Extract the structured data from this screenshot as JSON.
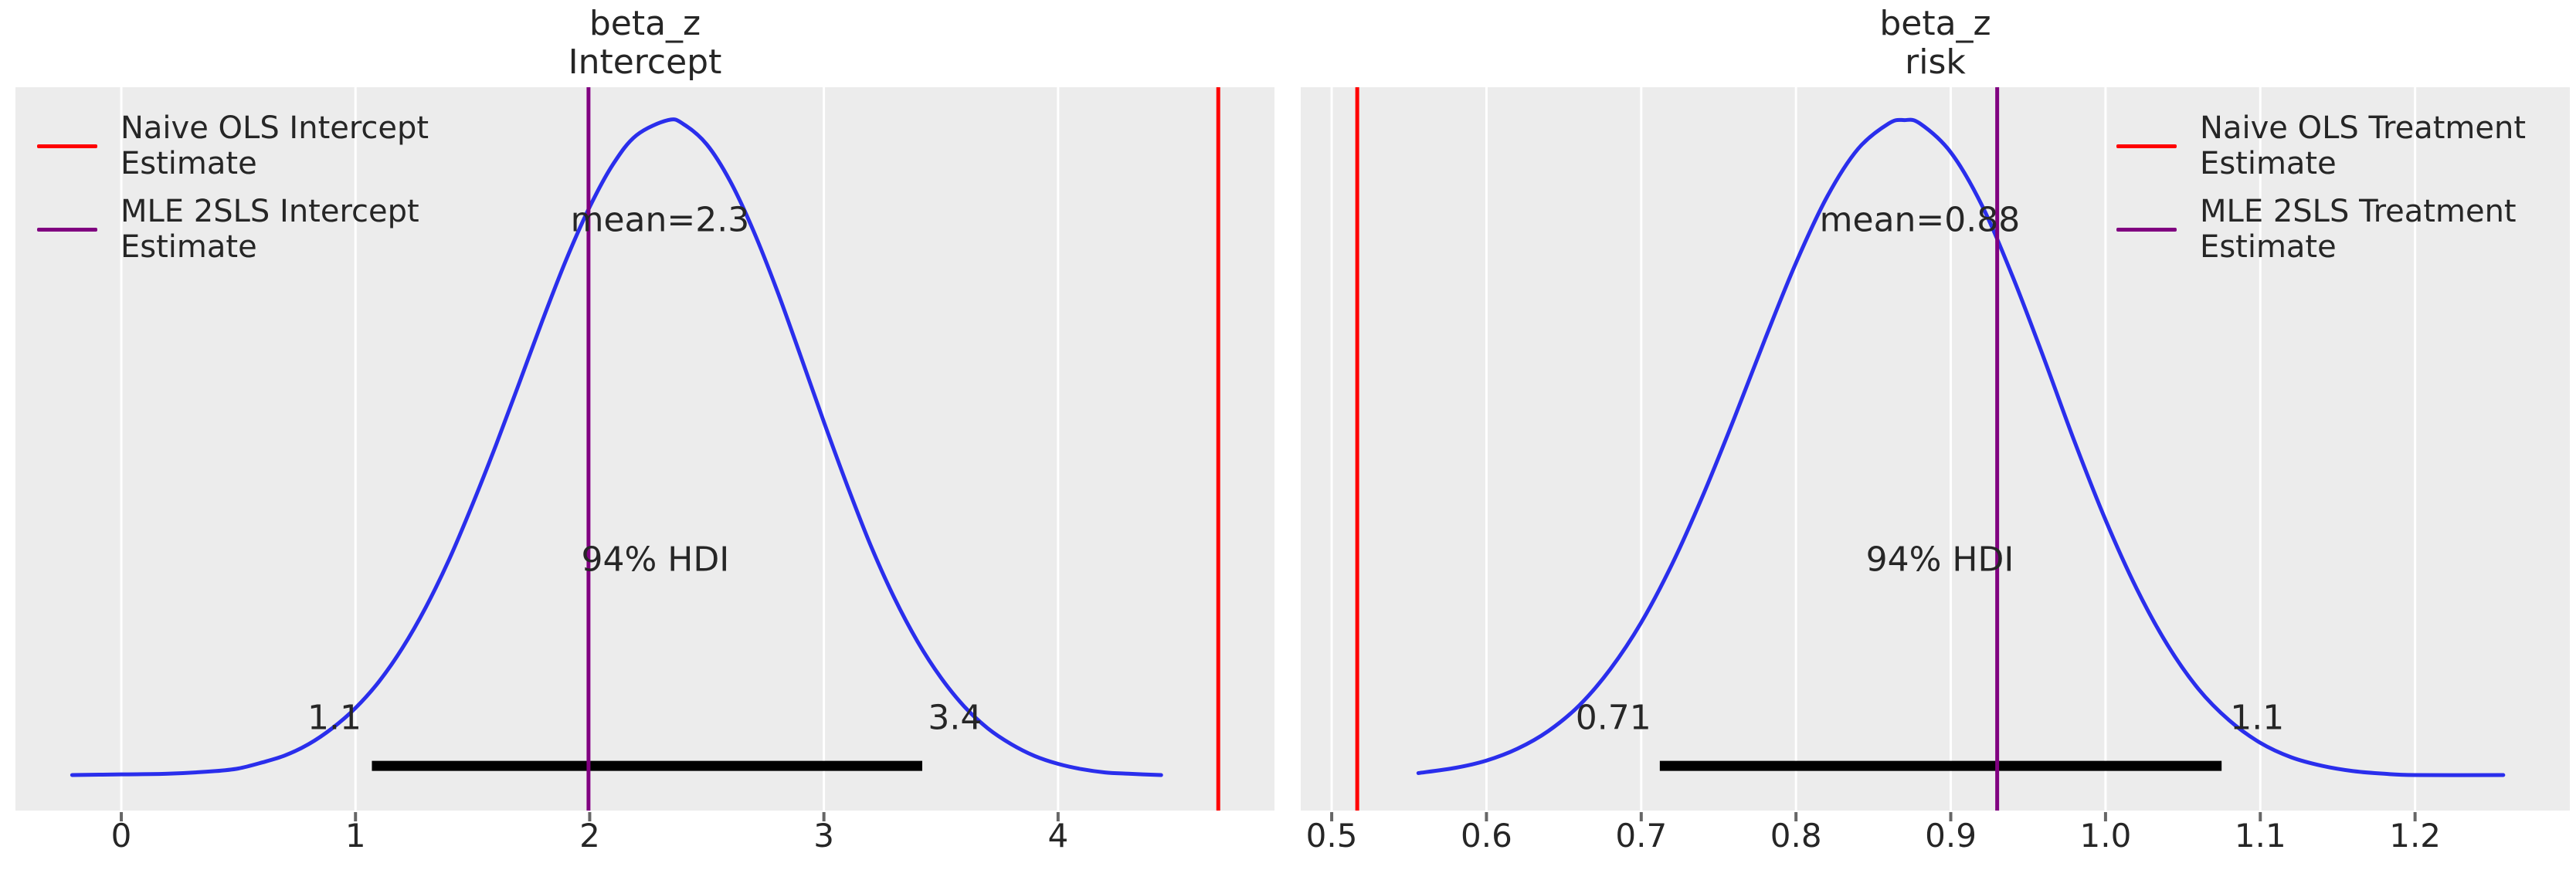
{
  "figure": {
    "background": "#ffffff",
    "plot_background": "#ececec",
    "grid_color": "#ffffff",
    "text_color": "#262626",
    "tick_color": "#666666",
    "hdi_bar_color": "#000000"
  },
  "chart_data": [
    {
      "type": "line",
      "title": "beta_z\nIntercept",
      "curve_name": "posterior-kde",
      "curve_color": "#2a2eec",
      "xlim": [
        -0.452,
        4.924
      ],
      "ylim": [
        -0.05,
        1.05
      ],
      "grid": "vertical-white",
      "xticks": [
        0,
        1,
        2,
        3,
        4
      ],
      "xtick_labels": [
        "0",
        "1",
        "2",
        "3",
        "4"
      ],
      "kde": {
        "x": [
          -0.21,
          0,
          0.2,
          0.4,
          0.5,
          0.6,
          0.7,
          0.8,
          0.9,
          1.0,
          1.1,
          1.2,
          1.3,
          1.4,
          1.5,
          1.6,
          1.7,
          1.8,
          1.9,
          2.0,
          2.1,
          2.2,
          2.335,
          2.4,
          2.5,
          2.6,
          2.7,
          2.8,
          2.9,
          3.0,
          3.1,
          3.2,
          3.3,
          3.4,
          3.5,
          3.6,
          3.7,
          3.8,
          3.9,
          4.0,
          4.1,
          4.2,
          4.3,
          4.44
        ],
        "density": [
          0.004,
          0.005,
          0.006,
          0.01,
          0.014,
          0.023,
          0.034,
          0.051,
          0.075,
          0.106,
          0.146,
          0.197,
          0.259,
          0.332,
          0.416,
          0.506,
          0.601,
          0.697,
          0.788,
          0.868,
          0.933,
          0.977,
          1.0,
          0.994,
          0.963,
          0.907,
          0.831,
          0.741,
          0.642,
          0.541,
          0.444,
          0.353,
          0.274,
          0.207,
          0.152,
          0.108,
          0.075,
          0.051,
          0.033,
          0.021,
          0.013,
          0.008,
          0.006,
          0.004
        ]
      },
      "mean_value": 2.3,
      "hdi_probability": "94%",
      "hdi_interval": [
        1.1,
        3.4
      ],
      "hdi_bar": {
        "from": 1.07,
        "to": 3.42,
        "y": 0.018
      },
      "annotations": {
        "mean": {
          "text": "mean=2.3",
          "x": 2.3,
          "y": 0.848
        },
        "hdi_text": {
          "text": "94% HDI",
          "x": 2.28,
          "y": 0.332
        },
        "hdi_lo": {
          "text": "1.1",
          "x": 0.91,
          "y": 0.091
        },
        "hdi_hi": {
          "text": "3.4",
          "x": 3.56,
          "y": 0.091
        }
      },
      "ref_lines": [
        {
          "name": "naive-ols-intercept-line",
          "x": 4.684,
          "color": "#ff0000"
        },
        {
          "name": "mle-2sls-intercept-line",
          "x": 1.995,
          "color": "#800080"
        }
      ],
      "legend": {
        "position": "upper-left",
        "items": [
          {
            "label": "Naive OLS Intercept\n Estimate",
            "color": "#ff0000"
          },
          {
            "label": "MLE 2SLS Intercept\n Estimate",
            "color": "#800080"
          }
        ]
      }
    },
    {
      "type": "line",
      "title": "beta_z\nrisk",
      "curve_name": "posterior-kde",
      "curve_color": "#2a2eec",
      "xlim": [
        0.48,
        1.3
      ],
      "ylim": [
        -0.05,
        1.05
      ],
      "grid": "vertical-white",
      "xticks": [
        0.5,
        0.6,
        0.7,
        0.8,
        0.9,
        1.0,
        1.1,
        1.2
      ],
      "xtick_labels": [
        "0.5",
        "0.6",
        "0.7",
        "0.8",
        "0.9",
        "1.0",
        "1.1",
        "1.2"
      ],
      "kde": {
        "x": [
          0.556,
          0.58,
          0.6,
          0.62,
          0.64,
          0.66,
          0.68,
          0.7,
          0.72,
          0.74,
          0.76,
          0.78,
          0.8,
          0.82,
          0.84,
          0.86,
          0.87,
          0.88,
          0.9,
          0.92,
          0.94,
          0.96,
          0.98,
          1.0,
          1.02,
          1.04,
          1.06,
          1.08,
          1.1,
          1.12,
          1.14,
          1.16,
          1.18,
          1.2,
          1.257
        ],
        "density": [
          0.007,
          0.015,
          0.026,
          0.044,
          0.071,
          0.11,
          0.165,
          0.236,
          0.325,
          0.43,
          0.546,
          0.667,
          0.783,
          0.883,
          0.956,
          0.995,
          1.0,
          0.995,
          0.951,
          0.871,
          0.762,
          0.639,
          0.511,
          0.392,
          0.288,
          0.202,
          0.135,
          0.087,
          0.053,
          0.031,
          0.018,
          0.01,
          0.006,
          0.004,
          0.004
        ]
      },
      "mean_value": 0.88,
      "hdi_probability": "94%",
      "hdi_interval": [
        0.71,
        1.1
      ],
      "hdi_bar": {
        "from": 0.712,
        "to": 1.075,
        "y": 0.018
      },
      "annotations": {
        "mean": {
          "text": "mean=0.88",
          "x": 0.88,
          "y": 0.848
        },
        "hdi_text": {
          "text": "94% HDI",
          "x": 0.893,
          "y": 0.332
        },
        "hdi_lo": {
          "text": "0.71",
          "x": 0.682,
          "y": 0.091
        },
        "hdi_hi": {
          "text": "1.1",
          "x": 1.098,
          "y": 0.091
        }
      },
      "ref_lines": [
        {
          "name": "naive-ols-treatment-line",
          "x": 0.5165,
          "color": "#ff0000"
        },
        {
          "name": "mle-2sls-treatment-line",
          "x": 0.93,
          "color": "#800080"
        }
      ],
      "legend": {
        "position": "upper-right",
        "items": [
          {
            "label": "Naive OLS Treatment\n Estimate",
            "color": "#ff0000"
          },
          {
            "label": "MLE 2SLS Treatment\n Estimate",
            "color": "#800080"
          }
        ]
      }
    }
  ]
}
